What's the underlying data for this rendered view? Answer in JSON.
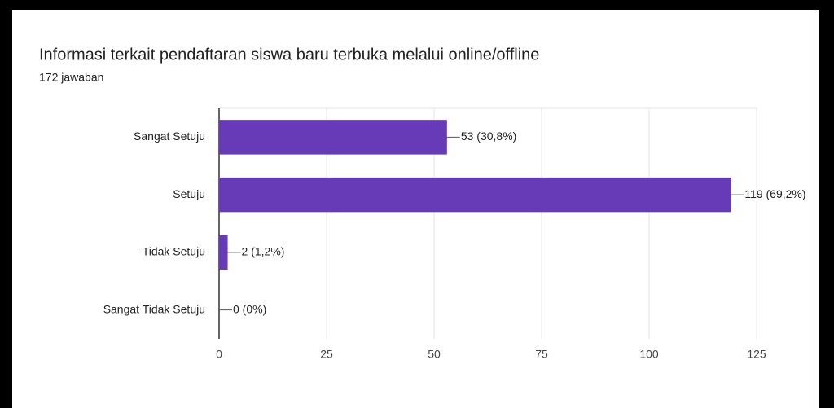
{
  "chart_data": {
    "type": "bar",
    "orientation": "horizontal",
    "title": "Informasi terkait pendaftaran siswa baru terbuka melalui online/offline",
    "subtitle": "172 jawaban",
    "categories": [
      "Sangat Setuju",
      "Setuju",
      "Tidak Setuju",
      "Sangat Tidak Setuju"
    ],
    "values": [
      53,
      119,
      2,
      0
    ],
    "value_labels": [
      "53 (30,8%)",
      "119 (69,2%)",
      "2 (1,2%)",
      "0 (0%)"
    ],
    "color": "#673ab7",
    "xlim": [
      0,
      125
    ],
    "xticks": [
      0,
      25,
      50,
      75,
      100,
      125
    ],
    "grid": true
  }
}
